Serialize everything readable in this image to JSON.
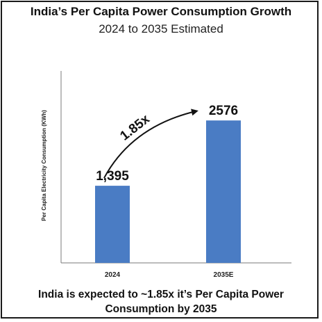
{
  "chart_data": {
    "type": "bar",
    "title": "India’s Per Capita Power Consumption Growth",
    "subtitle": "2024 to 2035 Estimated",
    "ylabel": "Per Capita Electricity Consumption (KWh)",
    "xlabel": "",
    "categories": [
      "2024",
      "2035E"
    ],
    "values": [
      1395,
      2576
    ],
    "data_labels": [
      "1,395",
      "2576"
    ],
    "growth_annotation": "1.85x",
    "bar_color": "#4a7cc4",
    "grid": false,
    "legend": "none"
  },
  "footer": {
    "line1": "India is expected to ~1.85x it’s Per Capita Power",
    "line2": "Consumption by  2035"
  }
}
